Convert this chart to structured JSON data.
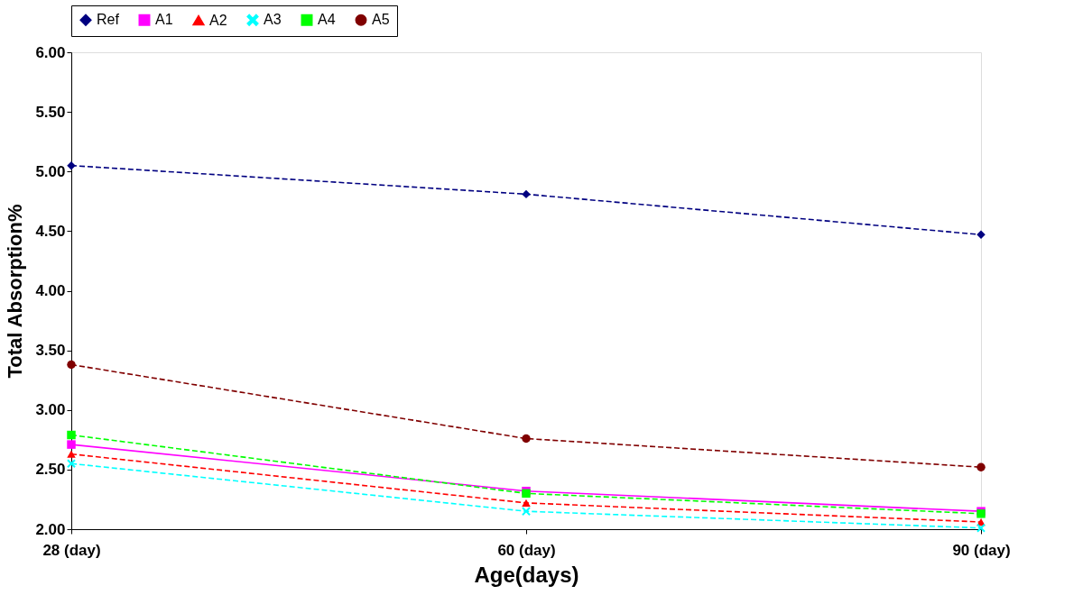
{
  "chart_data": {
    "type": "line",
    "xlabel": "Age(days)",
    "ylabel": "Total Absorption%",
    "categories": [
      "28 (day)",
      "60 (day)",
      "90 (day)"
    ],
    "series": [
      {
        "name": "Ref",
        "color": "#000080",
        "marker": "diamond",
        "line_style": "dashed",
        "values": [
          5.05,
          4.81,
          4.47
        ]
      },
      {
        "name": "A1",
        "color": "#ff00ff",
        "marker": "square",
        "line_style": "solid",
        "values": [
          2.71,
          2.32,
          2.15
        ]
      },
      {
        "name": "A2",
        "color": "#ff0000",
        "marker": "triangle",
        "line_style": "dashed",
        "values": [
          2.63,
          2.22,
          2.06
        ]
      },
      {
        "name": "A3",
        "color": "#00ffff",
        "marker": "cross",
        "line_style": "dashed",
        "values": [
          2.55,
          2.15,
          2.01
        ]
      },
      {
        "name": "A4",
        "color": "#00ff00",
        "marker": "square",
        "line_style": "dashed",
        "values": [
          2.79,
          2.3,
          2.13
        ]
      },
      {
        "name": "A5",
        "color": "#800000",
        "marker": "circle",
        "line_style": "dashed",
        "values": [
          3.38,
          2.76,
          2.52
        ]
      }
    ],
    "ylim": [
      2,
      6
    ],
    "yticks": [
      {
        "value": 2,
        "label": "2.00"
      },
      {
        "value": 2.5,
        "label": "2.50"
      },
      {
        "value": 3,
        "label": "3.00"
      },
      {
        "value": 3.5,
        "label": "3.50"
      },
      {
        "value": 4,
        "label": "4.00"
      },
      {
        "value": 4.5,
        "label": "4.50"
      },
      {
        "value": 5,
        "label": "5.00"
      },
      {
        "value": 5.5,
        "label": "5.50"
      },
      {
        "value": 6,
        "label": "6.00"
      }
    ],
    "grid": false,
    "legend": "top"
  }
}
